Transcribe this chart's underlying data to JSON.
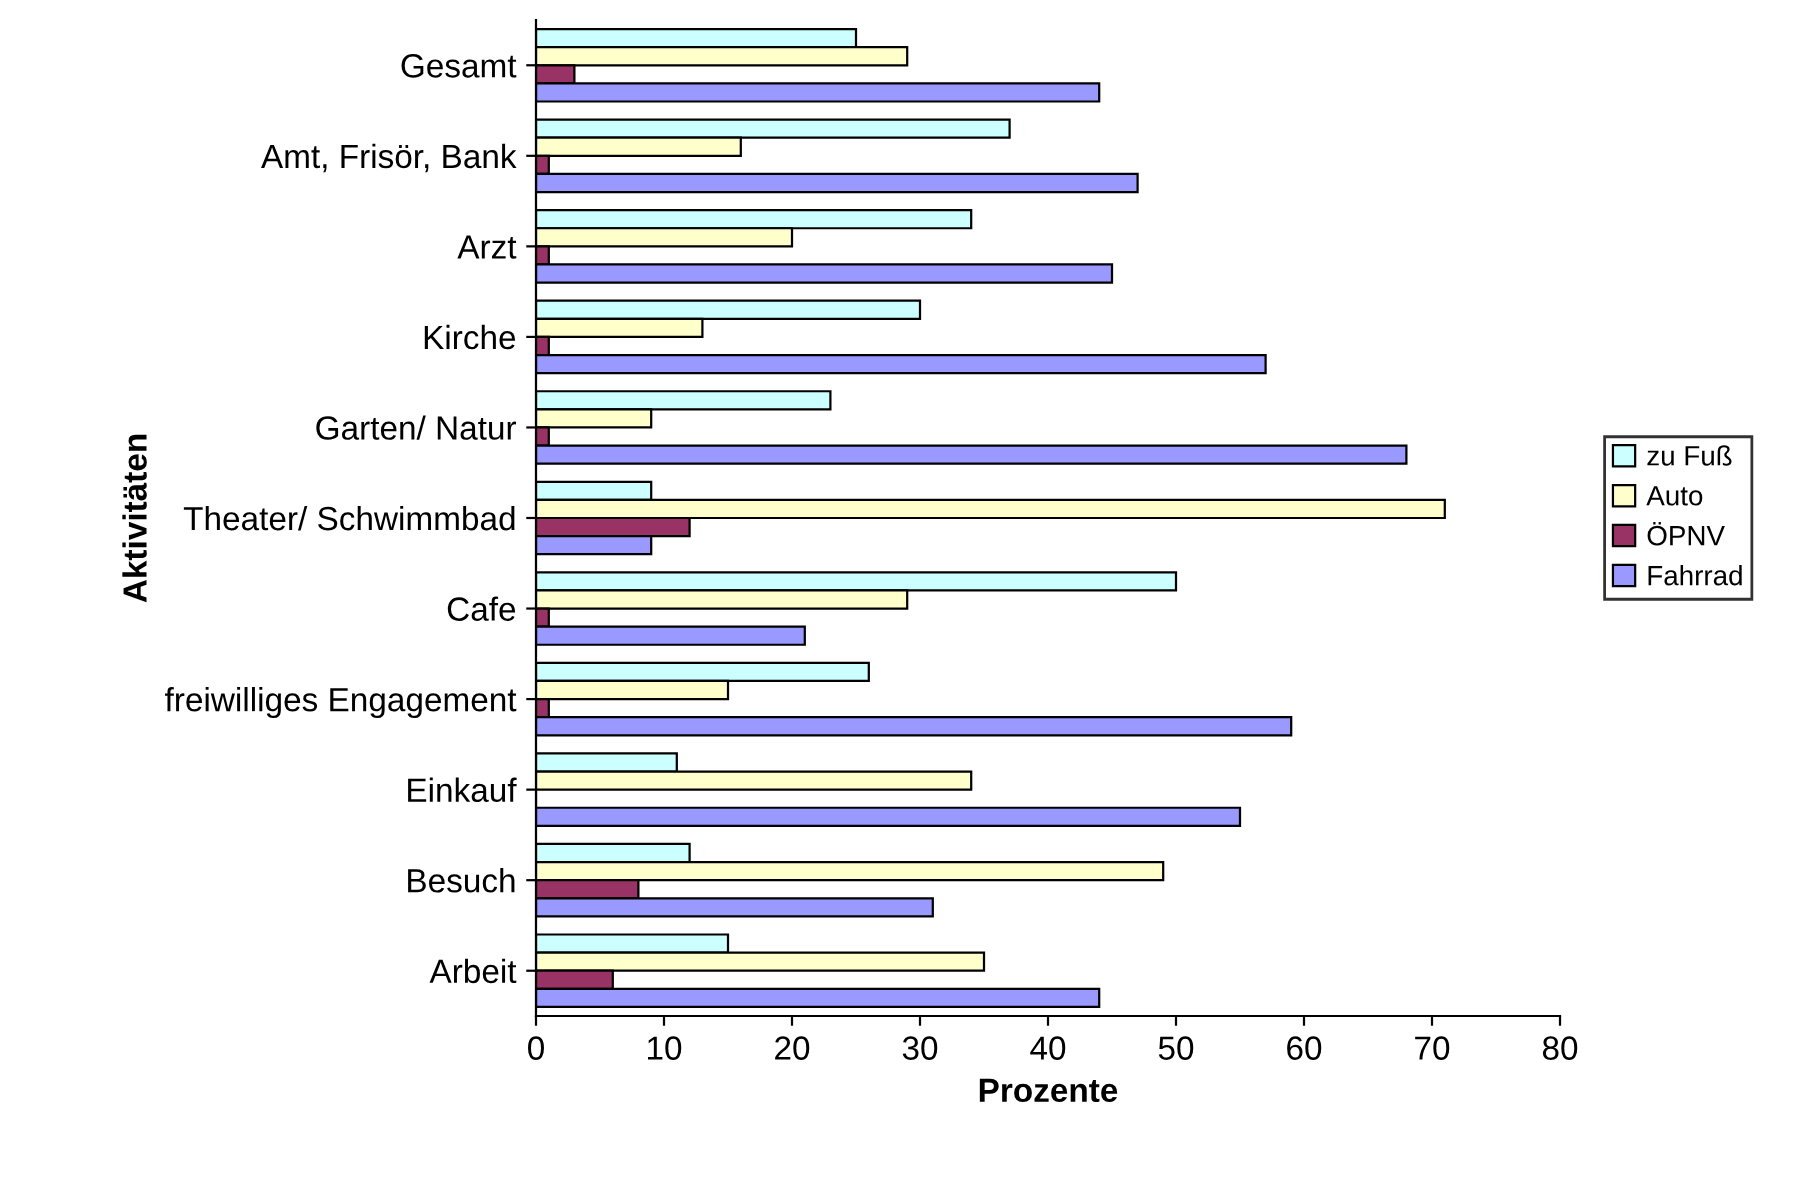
{
  "chart_data": {
    "type": "bar",
    "orientation": "horizontal",
    "xlabel": "Prozente",
    "ylabel": "Aktivitäten",
    "categories": [
      "Gesamt",
      "Amt, Frisör, Bank",
      "Arzt",
      "Kirche",
      "Garten/ Natur",
      "Theater/ Schwimmbad",
      "Cafe",
      "freiwilliges Engagement",
      "Einkauf",
      "Besuch",
      "Arbeit"
    ],
    "series": [
      {
        "name": "zu Fuß",
        "color": "#ccffff",
        "values": [
          25,
          37,
          34,
          30,
          23,
          9,
          50,
          26,
          11,
          12,
          15
        ]
      },
      {
        "name": "Auto",
        "color": "#ffffcc",
        "values": [
          29,
          16,
          20,
          13,
          9,
          71,
          29,
          15,
          34,
          49,
          35
        ]
      },
      {
        "name": "ÖPNV",
        "color": "#993366",
        "values": [
          3,
          1,
          1,
          1,
          1,
          12,
          1,
          1,
          0,
          8,
          6
        ]
      },
      {
        "name": "Fahrrad",
        "color": "#9999ff",
        "values": [
          44,
          47,
          45,
          57,
          68,
          9,
          21,
          59,
          55,
          31,
          44
        ]
      }
    ],
    "xlim": [
      0,
      80
    ],
    "xticks": [
      0,
      10,
      20,
      30,
      40,
      50,
      60,
      70,
      80
    ],
    "grid": false,
    "legend": "right"
  }
}
